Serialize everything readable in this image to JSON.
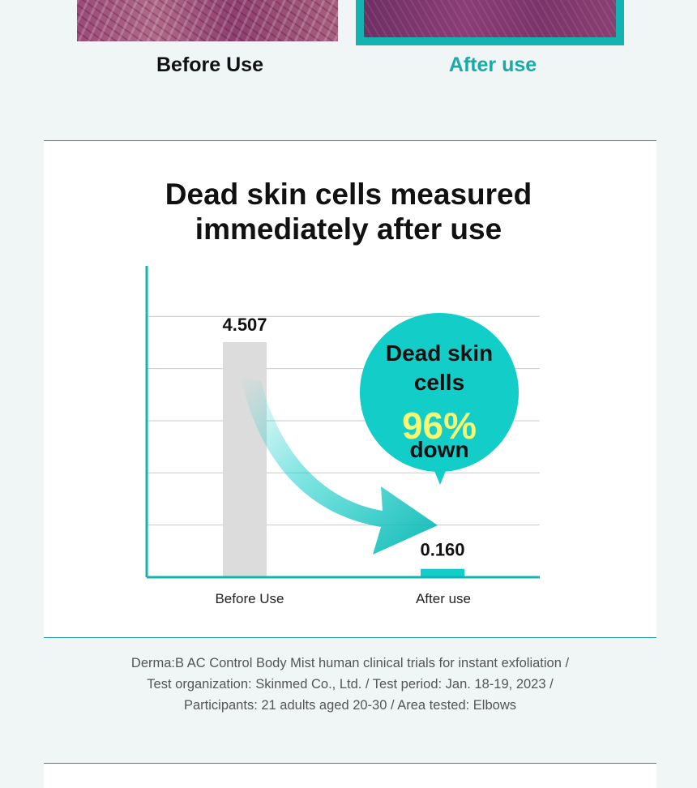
{
  "comparison_photos": {
    "before_label": "Before Use",
    "after_label": "After use"
  },
  "colors": {
    "accent_teal": "#13b4b0",
    "bubble": "#12cdc8",
    "highlight_yellow": "#f7f871",
    "bar_before": "#dcdcdc",
    "bar_after": "#12cdc8"
  },
  "chart_data": {
    "type": "bar",
    "title_lines": [
      "Dead skin cells measured",
      "immediately after use"
    ],
    "categories": [
      "Before Use",
      "After use"
    ],
    "values": [
      4.507,
      0.16
    ],
    "value_labels": [
      "4.507",
      "0.160"
    ],
    "ylim": [
      0,
      5
    ],
    "grid": true,
    "callout": {
      "line1": "Dead skin",
      "line2": "cells",
      "percent": "96%",
      "line3": "down"
    }
  },
  "footnote": {
    "line1": "Derma:B AC Control Body Mist human clinical trials for instant exfoliation /",
    "line2": "Test organization: Skinmed Co., Ltd. / Test period: Jan. 18-19, 2023 /",
    "line3": "Participants: 21 adults aged 20-30 / Area tested: Elbows"
  }
}
